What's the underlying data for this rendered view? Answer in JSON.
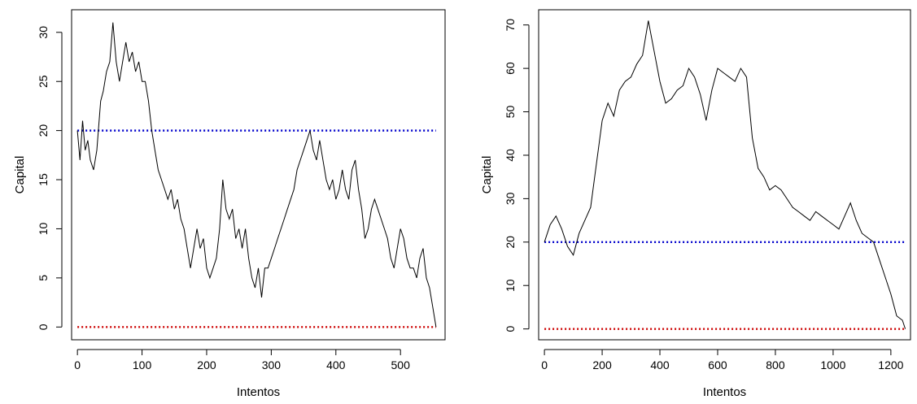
{
  "chart_data": [
    {
      "type": "line",
      "xlabel": "Intentos",
      "ylabel": "Capital",
      "xlim": [
        -9,
        569
      ],
      "ylim": [
        -1.3,
        32.3
      ],
      "xticks": [
        0,
        100,
        200,
        300,
        400,
        500
      ],
      "yticks": [
        0,
        5,
        10,
        15,
        20,
        25,
        30
      ],
      "grid": false,
      "reference_lines": [
        {
          "y": 20,
          "color": "#0000cc",
          "style": "dotted"
        },
        {
          "y": 0,
          "color": "#cc0000",
          "style": "dotted"
        }
      ],
      "series": [
        {
          "color": "#000000",
          "x": [
            0,
            4,
            8,
            12,
            16,
            20,
            25,
            30,
            36,
            40,
            45,
            50,
            55,
            60,
            65,
            70,
            75,
            80,
            85,
            90,
            95,
            100,
            105,
            110,
            115,
            120,
            125,
            130,
            135,
            140,
            145,
            150,
            155,
            160,
            165,
            170,
            175,
            180,
            185,
            190,
            195,
            200,
            205,
            210,
            215,
            220,
            225,
            230,
            235,
            240,
            245,
            250,
            255,
            260,
            265,
            270,
            275,
            280,
            285,
            290,
            295,
            300,
            305,
            310,
            315,
            320,
            325,
            330,
            335,
            340,
            345,
            350,
            355,
            360,
            365,
            370,
            375,
            380,
            385,
            390,
            395,
            400,
            405,
            410,
            415,
            420,
            425,
            430,
            435,
            440,
            445,
            450,
            455,
            460,
            465,
            470,
            475,
            480,
            485,
            490,
            495,
            500,
            505,
            510,
            515,
            520,
            525,
            530,
            535,
            540,
            545,
            550,
            555
          ],
          "y": [
            20,
            17,
            21,
            18,
            19,
            17,
            16,
            18,
            23,
            24,
            26,
            27,
            31,
            27,
            25,
            27,
            29,
            27,
            28,
            26,
            27,
            25,
            25,
            23,
            20,
            18,
            16,
            15,
            14,
            13,
            14,
            12,
            13,
            11,
            10,
            8,
            6,
            8,
            10,
            8,
            9,
            6,
            5,
            6,
            7,
            10,
            15,
            12,
            11,
            12,
            9,
            10,
            8,
            10,
            7,
            5,
            4,
            6,
            3,
            6,
            6,
            7,
            8,
            9,
            10,
            11,
            12,
            13,
            14,
            16,
            17,
            18,
            19,
            20,
            18,
            17,
            19,
            17,
            15,
            14,
            15,
            13,
            14,
            16,
            14,
            13,
            16,
            17,
            14,
            12,
            9,
            10,
            12,
            13,
            12,
            11,
            10,
            9,
            7,
            6,
            8,
            10,
            9,
            7,
            6,
            6,
            5,
            7,
            8,
            5,
            4,
            2,
            0
          ]
        }
      ]
    },
    {
      "type": "line",
      "xlabel": "Intentos",
      "ylabel": "Capital",
      "xlim": [
        -20,
        1268
      ],
      "ylim": [
        -2.5,
        73.5
      ],
      "xticks": [
        0,
        200,
        400,
        600,
        800,
        1000,
        1200
      ],
      "yticks": [
        0,
        10,
        20,
        30,
        40,
        50,
        60,
        70
      ],
      "grid": false,
      "reference_lines": [
        {
          "y": 20,
          "color": "#0000cc",
          "style": "dotted"
        },
        {
          "y": 0,
          "color": "#cc0000",
          "style": "dotted"
        }
      ],
      "series": [
        {
          "color": "#000000",
          "x": [
            0,
            20,
            40,
            60,
            80,
            100,
            120,
            140,
            160,
            180,
            200,
            220,
            240,
            260,
            280,
            300,
            320,
            340,
            360,
            380,
            400,
            420,
            440,
            460,
            480,
            500,
            520,
            540,
            560,
            580,
            600,
            620,
            640,
            660,
            680,
            700,
            720,
            740,
            760,
            780,
            800,
            820,
            840,
            860,
            880,
            900,
            920,
            940,
            960,
            980,
            1000,
            1020,
            1040,
            1060,
            1080,
            1100,
            1120,
            1140,
            1160,
            1180,
            1200,
            1220,
            1240,
            1250
          ],
          "y": [
            20,
            24,
            26,
            23,
            19,
            17,
            22,
            25,
            28,
            38,
            48,
            52,
            49,
            55,
            57,
            58,
            61,
            63,
            71,
            64,
            57,
            52,
            53,
            55,
            56,
            60,
            58,
            54,
            48,
            55,
            60,
            59,
            58,
            57,
            60,
            58,
            44,
            37,
            35,
            32,
            33,
            32,
            30,
            28,
            27,
            26,
            25,
            27,
            26,
            25,
            24,
            23,
            26,
            29,
            25,
            22,
            21,
            20,
            16,
            12,
            8,
            3,
            2,
            0
          ]
        }
      ]
    }
  ]
}
